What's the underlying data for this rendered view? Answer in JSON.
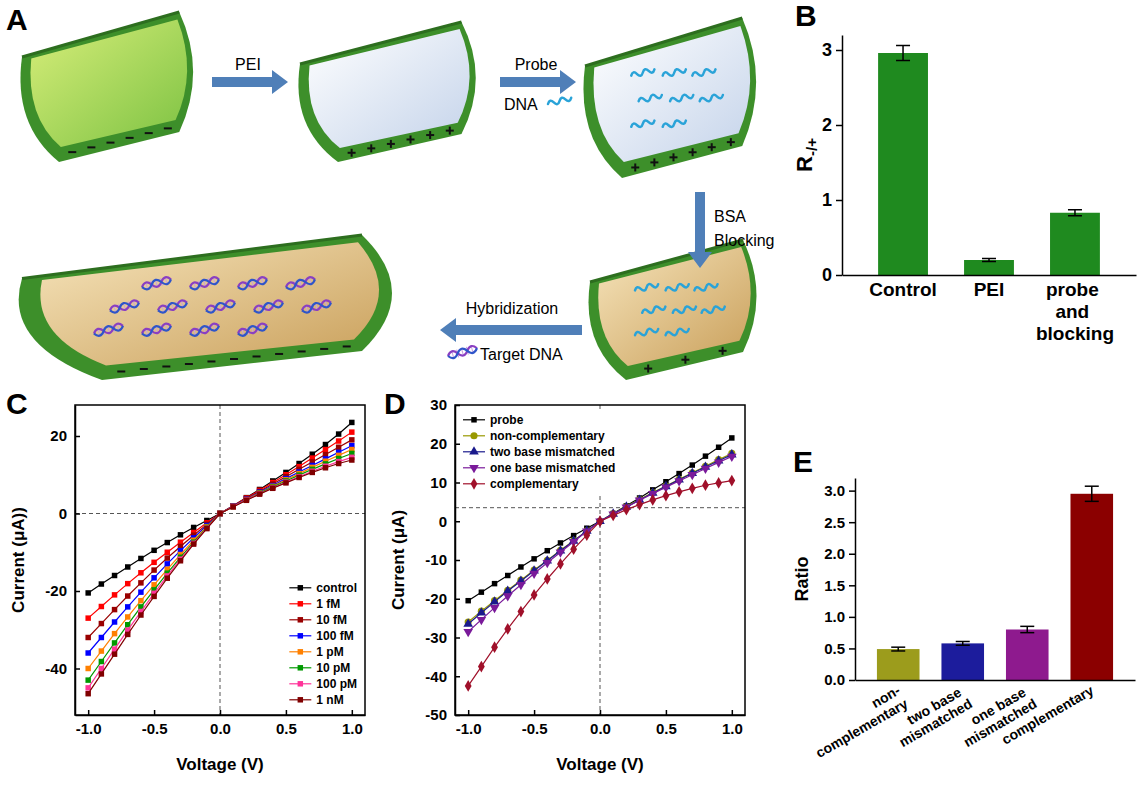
{
  "diagram": {
    "panel_label": "A",
    "steps": [
      {
        "label": "PEI"
      },
      {
        "label": "Probe",
        "sublabel": "DNA"
      },
      {
        "label": "BSA",
        "sublabel": "Blocking"
      },
      {
        "label": "Hybridization",
        "sublabel": "Target DNA"
      }
    ]
  },
  "chart_data": [
    {
      "type": "bar",
      "panel_label": "B",
      "ylabel": "R-/+",
      "categories": [
        "Control",
        "PEI",
        "probe and blocking"
      ],
      "values": [
        2.96,
        0.2,
        0.83
      ],
      "errors": [
        0.1,
        0.02,
        0.04
      ],
      "color": "#1f8a1f",
      "ylim": [
        0,
        3.2
      ],
      "yticks": [
        0,
        1,
        2,
        3
      ]
    },
    {
      "type": "line",
      "panel_label": "C",
      "xlabel": "Voltage (V)",
      "ylabel": "Current (μA))",
      "x": [
        -1,
        -0.9,
        -0.8,
        -0.7,
        -0.6,
        -0.5,
        -0.4,
        -0.3,
        -0.2,
        -0.1,
        0,
        0.1,
        0.2,
        0.3,
        0.4,
        0.5,
        0.6,
        0.7,
        0.8,
        0.9,
        1
      ],
      "xlim": [
        -1.1,
        1.1
      ],
      "xticks": [
        {
          "value": -1,
          "label": "-1.0"
        },
        -0.5,
        {
          "value": 0,
          "label": "0.0"
        },
        0.5,
        {
          "value": 1,
          "label": "1.0"
        }
      ],
      "ylim": [
        -52,
        28
      ],
      "yticks": [
        -40,
        -20,
        0,
        20
      ],
      "ref_lines": {
        "x": 0,
        "y": 0
      },
      "legend": "lower right",
      "series": [
        {
          "name": "control",
          "color": "#000000",
          "marker": "square",
          "values": [
            -20.5,
            -18.2,
            -16,
            -13.8,
            -11.6,
            -9.5,
            -7.5,
            -5.5,
            -3.6,
            -1.8,
            0,
            2,
            4.1,
            6.2,
            8.4,
            10.6,
            12.9,
            15.3,
            17.8,
            20.5,
            23.5
          ]
        },
        {
          "name": "1 fM",
          "color": "#ff0000",
          "marker": "square",
          "values": [
            -27,
            -24,
            -21,
            -18.1,
            -15.3,
            -12.6,
            -10,
            -7.4,
            -4.9,
            -2.4,
            0,
            2,
            4,
            6,
            8,
            10,
            12.1,
            14.3,
            16.5,
            18.7,
            21
          ]
        },
        {
          "name": "10 fM",
          "color": "#990000",
          "marker": "square",
          "values": [
            -32,
            -28.4,
            -24.8,
            -21.3,
            -17.9,
            -14.6,
            -11.5,
            -8.5,
            -5.6,
            -2.8,
            0,
            1.9,
            3.8,
            5.7,
            7.6,
            9.5,
            11.4,
            13.3,
            15.2,
            17.1,
            19
          ]
        },
        {
          "name": "100 fM",
          "color": "#0000ff",
          "marker": "square",
          "values": [
            -36,
            -32,
            -28,
            -24.1,
            -20.3,
            -16.6,
            -13,
            -9.6,
            -6.3,
            -3.1,
            0,
            1.9,
            3.7,
            5.5,
            7.2,
            9,
            10.7,
            12.4,
            14.1,
            15.8,
            17.5
          ]
        },
        {
          "name": "1 pM",
          "color": "#ff8000",
          "marker": "square",
          "values": [
            -40,
            -35.5,
            -31,
            -26.7,
            -22.5,
            -18.4,
            -14.4,
            -10.6,
            -6.9,
            -3.4,
            0,
            1.8,
            3.6,
            5.3,
            7,
            8.7,
            10.3,
            11.9,
            13.5,
            15,
            16.5
          ]
        },
        {
          "name": "10 pM",
          "color": "#009900",
          "marker": "square",
          "values": [
            -43,
            -38.2,
            -33.4,
            -28.7,
            -24.1,
            -19.7,
            -15.4,
            -11.3,
            -7.4,
            -3.6,
            0,
            1.8,
            3.5,
            5.2,
            6.8,
            8.4,
            9.9,
            11.4,
            12.8,
            14.2,
            15.5
          ]
        },
        {
          "name": "100 pM",
          "color": "#ff3399",
          "marker": "square",
          "values": [
            -45,
            -40,
            -35,
            -30.1,
            -25.3,
            -20.6,
            -16.1,
            -11.8,
            -7.7,
            -3.8,
            0,
            1.8,
            3.5,
            5.1,
            6.6,
            8.1,
            9.5,
            10.9,
            12.2,
            13.4,
            14.5
          ]
        },
        {
          "name": "1 nM",
          "color": "#800000",
          "marker": "square",
          "values": [
            -46.5,
            -41.4,
            -36.3,
            -31.2,
            -26.2,
            -21.4,
            -16.7,
            -12.2,
            -7.9,
            -3.9,
            0,
            1.7,
            3.4,
            5,
            6.5,
            7.9,
            9.3,
            10.6,
            11.8,
            12.9,
            13.8
          ]
        }
      ]
    },
    {
      "type": "line",
      "panel_label": "D",
      "xlabel": "Voltage (V)",
      "ylabel": "Current (μA)",
      "x": [
        -1,
        -0.9,
        -0.8,
        -0.7,
        -0.6,
        -0.5,
        -0.4,
        -0.3,
        -0.2,
        -0.1,
        0,
        0.1,
        0.2,
        0.3,
        0.4,
        0.5,
        0.6,
        0.7,
        0.8,
        0.9,
        1
      ],
      "xlim": [
        -1.1,
        1.1
      ],
      "xticks": [
        {
          "value": -1,
          "label": "-1.0"
        },
        -0.5,
        {
          "value": 0,
          "label": "0.0"
        },
        0.5,
        {
          "value": 1,
          "label": "1.0"
        }
      ],
      "ylim": [
        -50,
        30
      ],
      "yticks": [
        -50,
        -40,
        -30,
        -20,
        -10,
        0,
        10,
        20,
        30
      ],
      "ref_lines": {
        "x": 0,
        "y": 3.5
      },
      "legend": "upper left",
      "series": [
        {
          "name": "probe",
          "color": "#000000",
          "marker": "square",
          "values": [
            -20.5,
            -18.3,
            -16.1,
            -14,
            -11.8,
            -9.7,
            -7.6,
            -5.6,
            -3.7,
            -1.8,
            0,
            2,
            4,
            6,
            8.1,
            10.2,
            12.3,
            14.5,
            16.8,
            19.1,
            21.5
          ]
        },
        {
          "name": "non-complementary",
          "color": "#999900",
          "marker": "circle",
          "values": [
            -26,
            -23.2,
            -20.5,
            -17.8,
            -15.2,
            -12.6,
            -10.1,
            -7.5,
            -5,
            -2.5,
            0,
            1.9,
            3.8,
            5.6,
            7.4,
            9.1,
            10.8,
            12.5,
            14.2,
            15.9,
            17.5
          ]
        },
        {
          "name": "two base mismatched",
          "color": "#1a1a8c",
          "marker": "triangle",
          "values": [
            -26.5,
            -23.6,
            -20.8,
            -18,
            -15.4,
            -12.8,
            -10.2,
            -7.6,
            -5.1,
            -2.5,
            0,
            1.9,
            3.7,
            5.5,
            7.3,
            9,
            10.7,
            12.4,
            14,
            15.6,
            17.2
          ]
        },
        {
          "name": "one base mismatched",
          "color": "#7a1a9a",
          "marker": "triangle-down",
          "values": [
            -28.5,
            -25.4,
            -22.3,
            -19.3,
            -16.4,
            -13.5,
            -10.7,
            -8,
            -5.3,
            -2.6,
            0,
            1.8,
            3.6,
            5.4,
            7.1,
            8.8,
            10.4,
            12,
            13.6,
            15.2,
            16.7
          ]
        },
        {
          "name": "complementary",
          "color": "#a0102a",
          "marker": "diamond",
          "values": [
            -42.5,
            -37.5,
            -32.5,
            -27.8,
            -23.3,
            -19,
            -14.9,
            -11,
            -7.2,
            -3.6,
            0,
            1.5,
            3,
            4.3,
            5.5,
            6.6,
            7.6,
            8.5,
            9.3,
            9.9,
            10.5
          ]
        }
      ]
    },
    {
      "type": "bar",
      "panel_label": "E",
      "ylabel": "Ratio",
      "categories": [
        "non-complementary",
        "two base mismatched",
        "one base mismatched",
        "complementary"
      ],
      "values": [
        0.49,
        0.58,
        0.8,
        2.95
      ],
      "errors": [
        0.03,
        0.03,
        0.05,
        0.12
      ],
      "colors": [
        "#9c9c1c",
        "#1c1c9c",
        "#8e1a8e",
        "#8b0000"
      ],
      "ylim": [
        0,
        3.2
      ],
      "yticks": [
        {
          "value": 0,
          "label": "0.0"
        },
        0.5,
        {
          "value": 1,
          "label": "1.0"
        },
        1.5,
        {
          "value": 2,
          "label": "2.0"
        },
        2.5,
        {
          "value": 3,
          "label": "3.0"
        }
      ]
    }
  ]
}
